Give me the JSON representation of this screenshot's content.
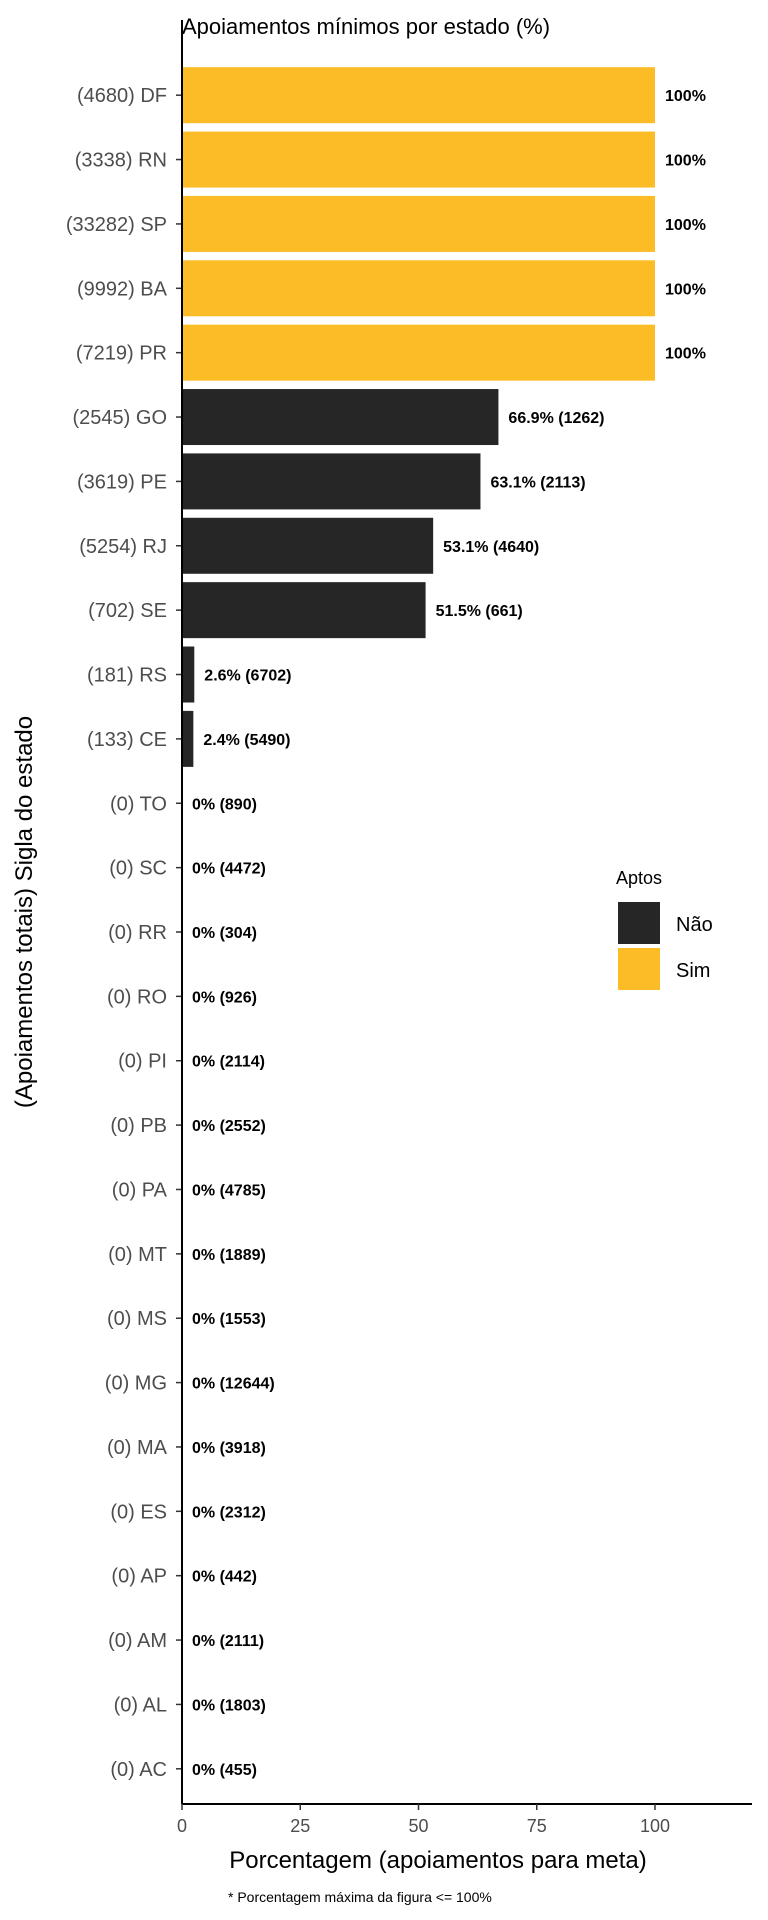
{
  "chart_data": {
    "type": "bar",
    "orientation": "horizontal",
    "title": "Apoiamentos mínimos por estado (%)",
    "xlabel": "Porcentagem (apoiamentos para meta)",
    "ylabel": "(Apoiamentos totais) Sigla do estado",
    "caption": "* Porcentagem máxima da figura <= 100%",
    "xlim": [
      0,
      120
    ],
    "xticks": [
      0,
      25,
      50,
      75,
      100
    ],
    "grid": false,
    "legend": {
      "title": "Aptos",
      "position": "right",
      "items": [
        {
          "label": "Não",
          "color": "#262626"
        },
        {
          "label": "Sim",
          "color": "#FBBC25"
        }
      ]
    },
    "categories": [
      "(4680) DF",
      "(3338) RN",
      "(33282) SP",
      "(9992) BA",
      "(7219) PR",
      "(2545) GO",
      "(3619) PE",
      "(5254) RJ",
      "(702) SE",
      "(181) RS",
      "(133) CE",
      "(0) TO",
      "(0) SC",
      "(0) RR",
      "(0) RO",
      "(0) PI",
      "(0) PB",
      "(0) PA",
      "(0) MT",
      "(0) MS",
      "(0) MG",
      "(0) MA",
      "(0) ES",
      "(0) AP",
      "(0) AM",
      "(0) AL",
      "(0) AC"
    ],
    "values": [
      100,
      100,
      100,
      100,
      100,
      66.9,
      63.1,
      53.1,
      51.5,
      2.6,
      2.4,
      0,
      0,
      0,
      0,
      0,
      0,
      0,
      0,
      0,
      0,
      0,
      0,
      0,
      0,
      0,
      0
    ],
    "aptos": [
      "Sim",
      "Sim",
      "Sim",
      "Sim",
      "Sim",
      "Não",
      "Não",
      "Não",
      "Não",
      "Não",
      "Não",
      "Não",
      "Não",
      "Não",
      "Não",
      "Não",
      "Não",
      "Não",
      "Não",
      "Não",
      "Não",
      "Não",
      "Não",
      "Não",
      "Não",
      "Não",
      "Não"
    ],
    "data_labels": [
      "100%",
      "100%",
      "100%",
      "100%",
      "100%",
      "66.9% (1262)",
      "63.1% (2113)",
      "53.1% (4640)",
      "51.5% (661)",
      "2.6% (6702)",
      "2.4% (5490)",
      "0% (890)",
      "0% (4472)",
      "0% (304)",
      "0% (926)",
      "0% (2114)",
      "0% (2552)",
      "0% (4785)",
      "0% (1889)",
      "0% (1553)",
      "0% (12644)",
      "0% (3918)",
      "0% (2312)",
      "0% (442)",
      "0% (2111)",
      "0% (1803)",
      "0% (455)"
    ]
  }
}
